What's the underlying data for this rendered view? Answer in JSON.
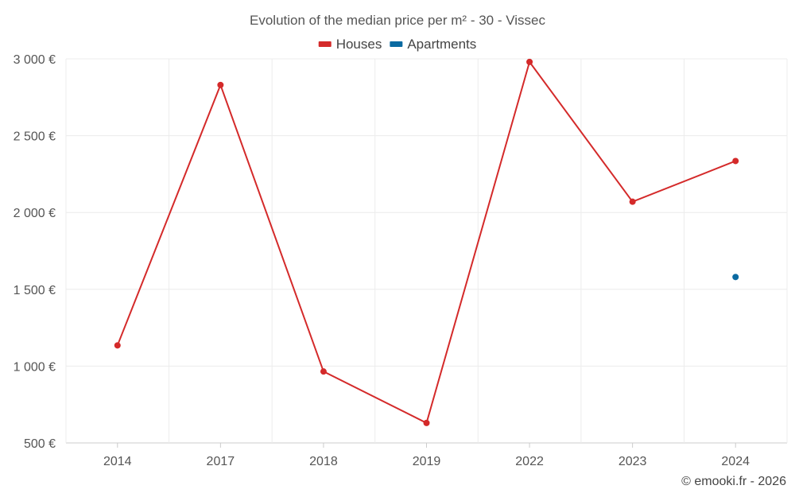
{
  "chart_data": {
    "type": "line",
    "title": "Evolution of the median price per m² - 30 - Vissec",
    "categories": [
      "2014",
      "2017",
      "2018",
      "2019",
      "2022",
      "2023",
      "2024"
    ],
    "y_ticks": [
      "500 €",
      "1 000 €",
      "1 500 €",
      "2 000 €",
      "2 500 €",
      "3 000 €"
    ],
    "ylim": [
      500,
      3000
    ],
    "grid": true,
    "legend_position": "top-center",
    "series": [
      {
        "name": "Houses",
        "color": "#d42a2a",
        "values": [
          1135,
          2830,
          965,
          630,
          2980,
          2070,
          2335
        ]
      },
      {
        "name": "Apartments",
        "color": "#0a6aa1",
        "values": [
          null,
          null,
          null,
          null,
          null,
          null,
          1580
        ]
      }
    ],
    "credit": "© emooki.fr - 2026"
  }
}
